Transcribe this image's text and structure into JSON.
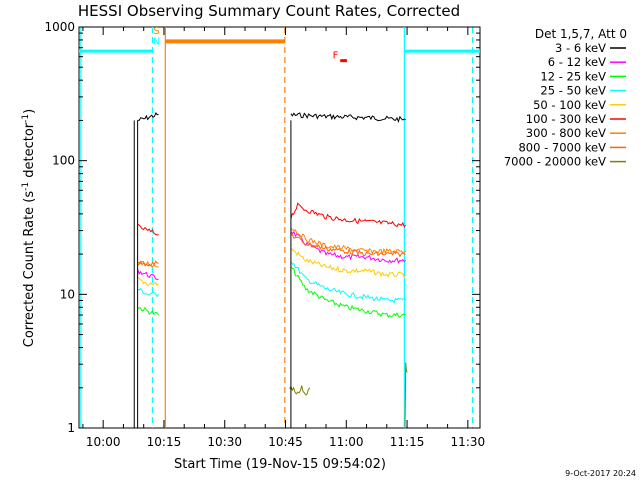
{
  "chart_data": {
    "type": "line",
    "title": "HESSI Observing Summary Count Rates, Corrected",
    "xlabel": "Start Time (19-Nov-15 09:54:02)",
    "ylabel": "Corrected Count Rate (s⁻¹ detector⁻¹)",
    "ylabel_parts": {
      "main": "Corrected Count Rate (s",
      "sup1": "-1",
      "mid": " detector",
      "sup2": "-1",
      "end": ")"
    },
    "y_scale": "log",
    "ylim": [
      1,
      1000
    ],
    "y_ticks": [
      1,
      10,
      100,
      1000
    ],
    "y_tick_labels": [
      "1",
      "10",
      "100",
      "1000"
    ],
    "x_range": [
      "09:54:02",
      "11:33:00"
    ],
    "x_ticks": [
      "10:00",
      "10:15",
      "10:30",
      "10:45",
      "11:00",
      "11:15",
      "11:30"
    ],
    "legend_title": "Det 1,5,7, Att 0",
    "legend_position": "right",
    "series": [
      {
        "name": "3 - 6 keV",
        "color": "#000000",
        "segments": [
          {
            "points": [
              [
                "10:08:30",
                200
              ],
              [
                "10:10:00",
                205
              ],
              [
                "10:11:00",
                210
              ],
              [
                "10:12:00",
                215
              ],
              [
                "10:13:40",
                222
              ]
            ]
          },
          {
            "points": [
              [
                "10:46:20",
                220
              ],
              [
                "10:50:00",
                218
              ],
              [
                "10:55:00",
                214
              ],
              [
                "11:00:00",
                212
              ],
              [
                "11:05:00",
                210
              ],
              [
                "11:10:00",
                206
              ],
              [
                "11:14:40",
                203
              ]
            ]
          }
        ]
      },
      {
        "name": "6 - 12 keV",
        "color": "#ff00ff",
        "segments": [
          {
            "points": [
              [
                "10:08:30",
                15
              ],
              [
                "10:11:00",
                14
              ],
              [
                "10:13:40",
                13
              ]
            ]
          },
          {
            "points": [
              [
                "10:46:20",
                30
              ],
              [
                "10:50:00",
                24
              ],
              [
                "10:55:00",
                20
              ],
              [
                "11:00:00",
                19
              ],
              [
                "11:05:00",
                19
              ],
              [
                "11:10:00",
                18
              ],
              [
                "11:14:40",
                18
              ]
            ]
          }
        ]
      },
      {
        "name": "12 - 25 keV",
        "color": "#00ff00",
        "segments": [
          {
            "points": [
              [
                "10:08:30",
                8
              ],
              [
                "10:11:00",
                7.5
              ],
              [
                "10:13:40",
                7
              ]
            ]
          },
          {
            "points": [
              [
                "10:46:20",
                16
              ],
              [
                "10:50:00",
                11
              ],
              [
                "10:55:00",
                9
              ],
              [
                "11:00:00",
                8
              ],
              [
                "11:05:00",
                7.5
              ],
              [
                "11:10:00",
                7
              ],
              [
                "11:14:40",
                7
              ]
            ]
          }
        ]
      },
      {
        "name": "25 - 50 keV",
        "color": "#00ffff",
        "segments": [
          {
            "points": [
              [
                "10:08:30",
                11
              ],
              [
                "10:11:00",
                10
              ],
              [
                "10:13:40",
                10
              ]
            ]
          },
          {
            "points": [
              [
                "10:46:20",
                18
              ],
              [
                "10:50:00",
                13
              ],
              [
                "10:55:00",
                11
              ],
              [
                "11:00:00",
                10
              ],
              [
                "11:05:00",
                9.5
              ],
              [
                "11:10:00",
                9
              ],
              [
                "11:14:40",
                9
              ]
            ]
          }
        ]
      },
      {
        "name": "50 - 100 keV",
        "color": "#ffcc00",
        "segments": [
          {
            "points": [
              [
                "10:08:30",
                13
              ],
              [
                "10:11:00",
                12
              ],
              [
                "10:13:40",
                12
              ]
            ]
          },
          {
            "points": [
              [
                "10:46:20",
                22
              ],
              [
                "10:50:00",
                18
              ],
              [
                "10:55:00",
                16
              ],
              [
                "11:00:00",
                15
              ],
              [
                "11:05:00",
                15
              ],
              [
                "11:10:00",
                14
              ],
              [
                "11:14:40",
                14
              ]
            ]
          }
        ]
      },
      {
        "name": "100 - 300 keV",
        "color": "#ff0000",
        "segments": [
          {
            "points": [
              [
                "10:08:30",
                32
              ],
              [
                "10:11:00",
                30
              ],
              [
                "10:13:40",
                28
              ]
            ]
          },
          {
            "points": [
              [
                "10:46:20",
                38
              ],
              [
                "10:48:00",
                46
              ],
              [
                "10:50:00",
                43
              ],
              [
                "10:55:00",
                38
              ],
              [
                "11:00:00",
                36
              ],
              [
                "11:05:00",
                35
              ],
              [
                "11:10:00",
                34
              ],
              [
                "11:14:40",
                33
              ]
            ]
          }
        ]
      },
      {
        "name": "300 - 800 keV",
        "color": "#ff8000",
        "segments": [
          {
            "points": [
              [
                "10:08:30",
                17
              ],
              [
                "10:11:00",
                17
              ],
              [
                "10:13:40",
                16
              ]
            ]
          },
          {
            "points": [
              [
                "10:46:20",
                32
              ],
              [
                "10:50:00",
                26
              ],
              [
                "10:55:00",
                23
              ],
              [
                "11:00:00",
                22
              ],
              [
                "11:05:00",
                21
              ],
              [
                "11:10:00",
                21
              ],
              [
                "11:14:40",
                21
              ]
            ]
          }
        ]
      },
      {
        "name": "800 - 7000 keV",
        "color": "#ff6600",
        "segments": [
          {
            "points": [
              [
                "10:08:30",
                17
              ],
              [
                "10:13:40",
                17
              ]
            ]
          },
          {
            "points": [
              [
                "10:46:20",
                28
              ],
              [
                "10:50:00",
                24
              ],
              [
                "10:55:00",
                22
              ],
              [
                "11:00:00",
                21
              ],
              [
                "11:05:00",
                20
              ],
              [
                "11:10:00",
                20
              ],
              [
                "11:14:40",
                20
              ]
            ]
          }
        ]
      },
      {
        "name": "7000 - 20000 keV",
        "color": "#808000",
        "segments": [
          {
            "points": [
              [
                "10:46:00",
                2.0
              ],
              [
                "10:47:00",
                2.0
              ],
              [
                "10:48:00",
                1.8
              ],
              [
                "10:49:00",
                2.0
              ],
              [
                "10:50:00",
                1.8
              ],
              [
                "10:51:00",
                2.0
              ]
            ]
          },
          {
            "points": [
              [
                "11:14:30",
                1.0
              ],
              [
                "11:14:40",
                3.0
              ],
              [
                "11:15:00",
                2.6
              ]
            ]
          }
        ]
      }
    ],
    "spikes": {
      "color": "#000000",
      "points": [
        [
          "10:07:40",
          2
        ],
        [
          "10:08:30",
          2
        ],
        [
          "10:46:20",
          2
        ]
      ]
    },
    "state_bars": [
      {
        "kind": "night",
        "color": "#00ffff",
        "start": "09:54:02",
        "end": "10:12:10",
        "y": 660
      },
      {
        "kind": "night",
        "color": "#00ffff",
        "start": "11:14:20",
        "end": "11:33:00",
        "y": 660
      },
      {
        "kind": "saa",
        "color": "#ff8000",
        "start": "10:15:20",
        "end": "10:44:50",
        "y": 780
      },
      {
        "kind": "flare",
        "color": "#ff0000",
        "start": "10:58:30",
        "end": "11:00:10",
        "y": 560
      }
    ],
    "state_labels": [
      {
        "text": "S",
        "color": "#ff8000",
        "time": "10:13:10",
        "y": 890
      },
      {
        "text": "N",
        "color": "#00ffff",
        "time": "10:13:10",
        "y": 740
      },
      {
        "text": "F",
        "color": "#ff0000",
        "time": "10:57:20",
        "y": 580
      }
    ],
    "vertical_lines": [
      {
        "time": "09:54:30",
        "color": "#00ffff",
        "style": "solid"
      },
      {
        "time": "10:12:10",
        "color": "#00ffff",
        "style": "dashed"
      },
      {
        "time": "10:15:20",
        "color": "#ff8000",
        "style": "solid"
      },
      {
        "time": "10:44:50",
        "color": "#ff8000",
        "style": "dashed"
      },
      {
        "time": "11:14:20",
        "color": "#00ffff",
        "style": "solid"
      },
      {
        "time": "11:31:10",
        "color": "#00ffff",
        "style": "dashed"
      }
    ]
  },
  "footer": {
    "timestamp": "9-Oct-2017 20:24"
  }
}
